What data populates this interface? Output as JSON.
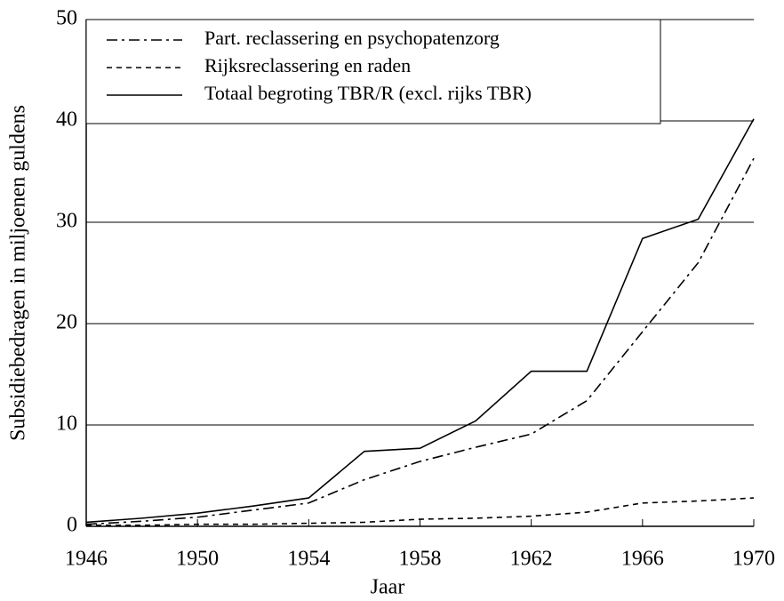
{
  "chart_data": {
    "type": "line",
    "y_label": "Subsidiebedragen in miljoenen guldens",
    "x_label": "Jaar",
    "x": [
      1946,
      1948,
      1950,
      1952,
      1954,
      1956,
      1958,
      1960,
      1962,
      1964,
      1966,
      1968,
      1970
    ],
    "series": [
      {
        "name": "Part. reclassering en psychopatenzorg",
        "color": "#000000",
        "style": "dashdot",
        "values": [
          0.2,
          0.5,
          0.9,
          1.6,
          2.3,
          4.6,
          6.4,
          7.8,
          9.1,
          12.4,
          19.2,
          26.0,
          36.3
        ]
      },
      {
        "name": "Rijksreclassering en raden",
        "color": "#000000",
        "style": "dashed",
        "values": [
          0.1,
          0.1,
          0.2,
          0.2,
          0.3,
          0.4,
          0.7,
          0.8,
          1.0,
          1.4,
          2.3,
          2.5,
          2.8
        ]
      },
      {
        "name": "Totaal begroting TBR/R (excl. rijks TBR)",
        "color": "#000000",
        "style": "solid",
        "values": [
          0.4,
          0.8,
          1.3,
          2.0,
          2.8,
          7.4,
          7.7,
          10.4,
          15.3,
          15.3,
          28.4,
          30.3,
          40.2
        ]
      }
    ],
    "xlim": [
      1946,
      1970
    ],
    "xticks": [
      1946,
      1950,
      1954,
      1958,
      1962,
      1966,
      1970
    ],
    "ylim": [
      0,
      50
    ],
    "yticks": [
      0,
      10,
      20,
      30,
      40,
      50
    ],
    "grid": true,
    "legend": "upper left"
  }
}
